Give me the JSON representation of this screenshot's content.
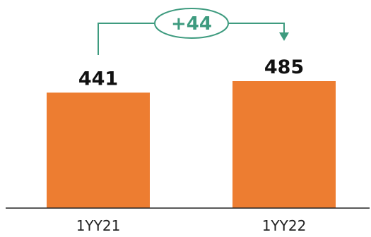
{
  "chart_data": {
    "type": "bar",
    "categories": [
      "1YY21",
      "1YY22"
    ],
    "values": [
      441,
      485
    ],
    "data_labels": [
      "441",
      "485"
    ],
    "annotation": {
      "text": "+44",
      "from_category": "1YY21",
      "to_category": "1YY22"
    },
    "title": "",
    "xlabel": "",
    "ylabel": "",
    "ylim": [
      0,
      485
    ],
    "grid": false,
    "legend": "none",
    "colors": {
      "bar": "#ed7d31",
      "annotation": "#3e9b7f",
      "axis": "#222222",
      "text": "#111111"
    }
  }
}
